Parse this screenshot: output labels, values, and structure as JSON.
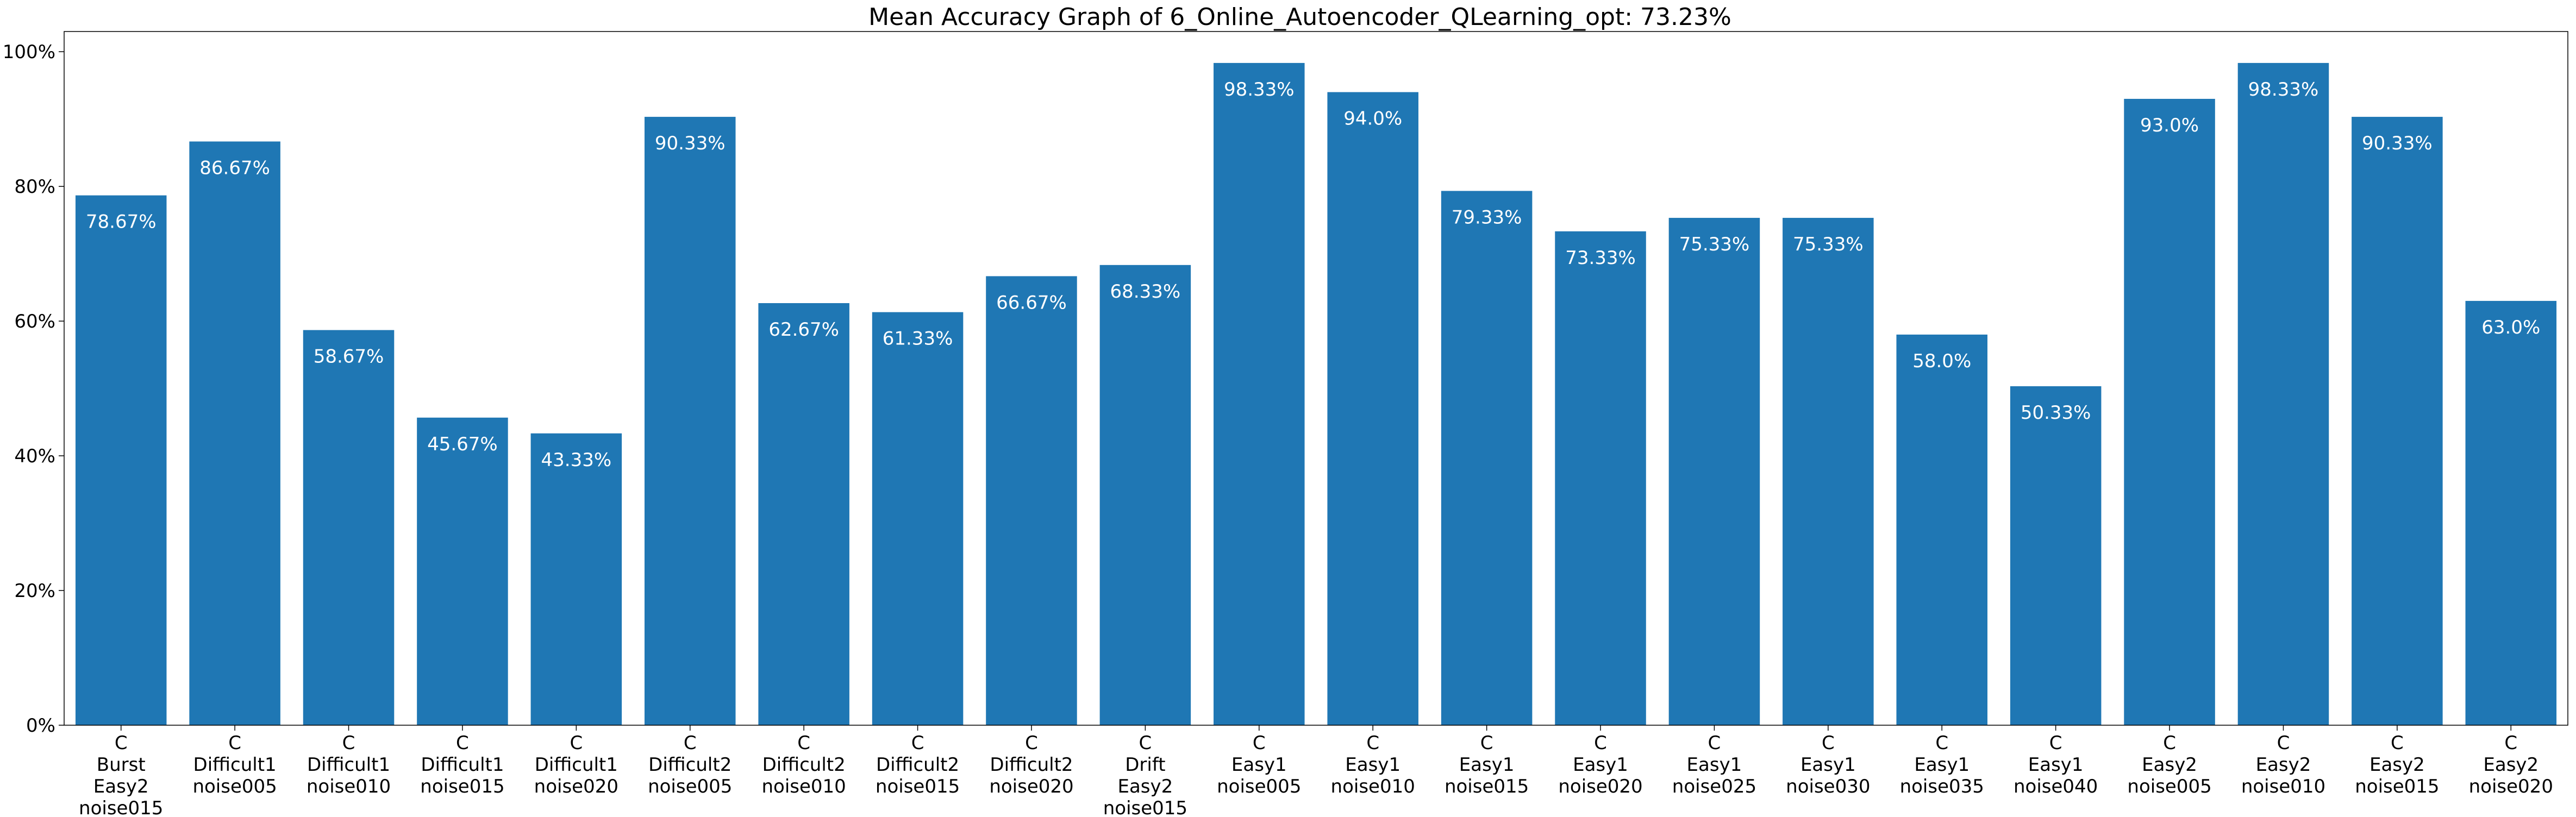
{
  "chart_data": {
    "type": "bar",
    "title": "Mean Accuracy Graph of 6_Online_Autoencoder_QLearning_opt: 73.23%",
    "xlabel": "",
    "ylabel": "",
    "ylim": [
      0,
      103
    ],
    "yticks": [
      0,
      20,
      40,
      60,
      80,
      100
    ],
    "ytick_labels": [
      "0%",
      "20%",
      "40%",
      "60%",
      "80%",
      "100%"
    ],
    "bar_color": "#1f77b4",
    "data_label_color": "#ffffff",
    "grid": false,
    "categories": [
      [
        "C",
        "Burst",
        "Easy2",
        "noise015"
      ],
      [
        "C",
        "Difficult1",
        "noise005"
      ],
      [
        "C",
        "Difficult1",
        "noise010"
      ],
      [
        "C",
        "Difficult1",
        "noise015"
      ],
      [
        "C",
        "Difficult1",
        "noise020"
      ],
      [
        "C",
        "Difficult2",
        "noise005"
      ],
      [
        "C",
        "Difficult2",
        "noise010"
      ],
      [
        "C",
        "Difficult2",
        "noise015"
      ],
      [
        "C",
        "Difficult2",
        "noise020"
      ],
      [
        "C",
        "Drift",
        "Easy2",
        "noise015"
      ],
      [
        "C",
        "Easy1",
        "noise005"
      ],
      [
        "C",
        "Easy1",
        "noise010"
      ],
      [
        "C",
        "Easy1",
        "noise015"
      ],
      [
        "C",
        "Easy1",
        "noise020"
      ],
      [
        "C",
        "Easy1",
        "noise025"
      ],
      [
        "C",
        "Easy1",
        "noise030"
      ],
      [
        "C",
        "Easy1",
        "noise035"
      ],
      [
        "C",
        "Easy1",
        "noise040"
      ],
      [
        "C",
        "Easy2",
        "noise005"
      ],
      [
        "C",
        "Easy2",
        "noise010"
      ],
      [
        "C",
        "Easy2",
        "noise015"
      ],
      [
        "C",
        "Easy2",
        "noise020"
      ]
    ],
    "values": [
      78.67,
      86.67,
      58.67,
      45.67,
      43.33,
      90.33,
      62.67,
      61.33,
      66.67,
      68.33,
      98.33,
      94.0,
      79.33,
      73.33,
      75.33,
      75.33,
      58.0,
      50.33,
      93.0,
      98.33,
      90.33,
      63.0
    ],
    "data_labels": [
      "78.67%",
      "86.67%",
      "58.67%",
      "45.67%",
      "43.33%",
      "90.33%",
      "62.67%",
      "61.33%",
      "66.67%",
      "68.33%",
      "98.33%",
      "94.0%",
      "79.33%",
      "73.33%",
      "75.33%",
      "75.33%",
      "58.0%",
      "50.33%",
      "93.0%",
      "98.33%",
      "90.33%",
      "63.0%"
    ]
  }
}
